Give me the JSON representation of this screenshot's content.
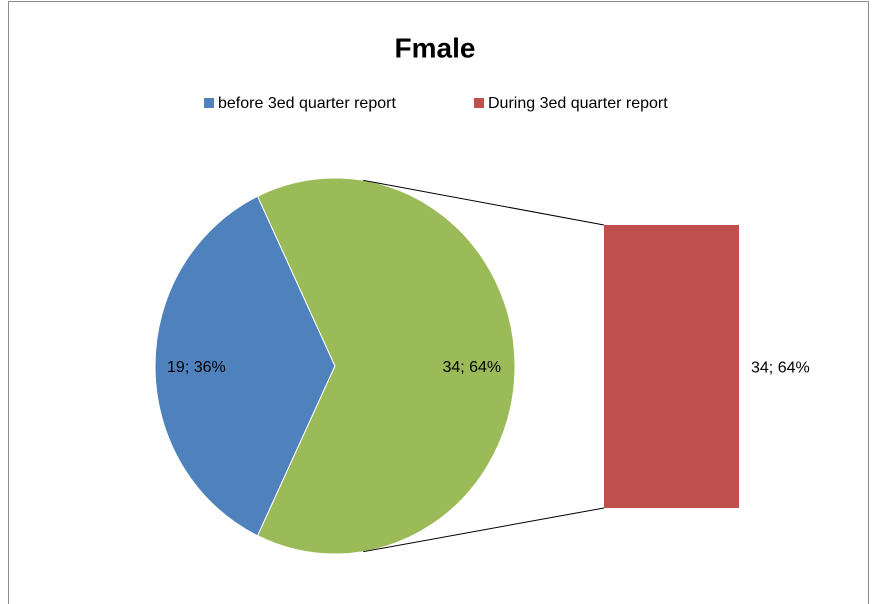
{
  "chart_data": {
    "type": "bar-of-pie",
    "title": "Fmale",
    "categories": [
      "before 3ed quarter report",
      "During 3ed quarter report"
    ],
    "values": [
      19,
      34
    ],
    "value_labels": [
      "19; 36%",
      "34; 64%"
    ],
    "colors": [
      "#4f81bd",
      "#c0504d"
    ],
    "other_color": "#9bbb59",
    "legend": "top"
  }
}
